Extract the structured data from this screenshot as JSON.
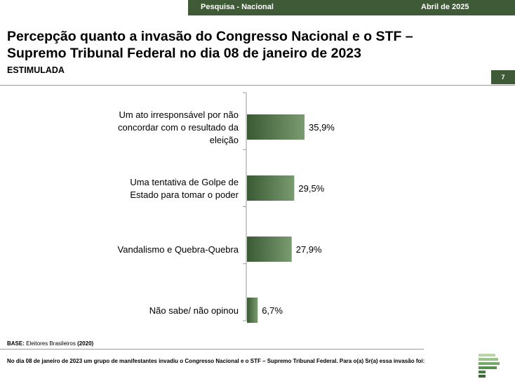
{
  "header": {
    "survey": "Pesquisa - Nacional",
    "date": "Abril de 2025"
  },
  "title": "Percepção quanto a invasão do Congresso Nacional e o STF – Supremo Tribunal Federal no dia 08 de janeiro de 2023",
  "subtitle": "ESTIMULADA",
  "page_number": "7",
  "base": {
    "label": "BASE:",
    "text": "Eleitores Brasileiros",
    "year": "(2020)"
  },
  "question": "No dia 08 de janeiro de 2023 um grupo de manifestantes invadiu o Congresso Nacional e o STF – Supremo Tribunal Federal. Para o(a) Sr(a) essa invasão foi:",
  "colors": {
    "primary": "#3f5a37",
    "bar_dark": "#3a5a34",
    "bar_light": "#7a9a70"
  },
  "chart_data": {
    "type": "bar",
    "orientation": "horizontal",
    "categories": [
      "Um ato irresponsável por não concordar com o resultado da eleição",
      "Uma tentativa de Golpe de Estado para tomar o poder",
      "Vandalismo e Quebra-Quebra",
      "Não sabe/ não opinou"
    ],
    "category_lines": [
      [
        "Um ato irresponsável por não",
        "concordar com o resultado da",
        "eleição"
      ],
      [
        "Uma tentativa de Golpe de",
        "Estado para tomar o poder"
      ],
      [
        "Vandalismo e Quebra-Quebra"
      ],
      [
        "Não sabe/ não opinou"
      ]
    ],
    "values": [
      35.9,
      29.5,
      27.9,
      6.7
    ],
    "value_labels": [
      "35,9%",
      "29,5%",
      "27,9%",
      "6,7%"
    ],
    "unit": "%",
    "xlim": [
      0,
      100
    ],
    "grid": false,
    "legend": "none"
  }
}
